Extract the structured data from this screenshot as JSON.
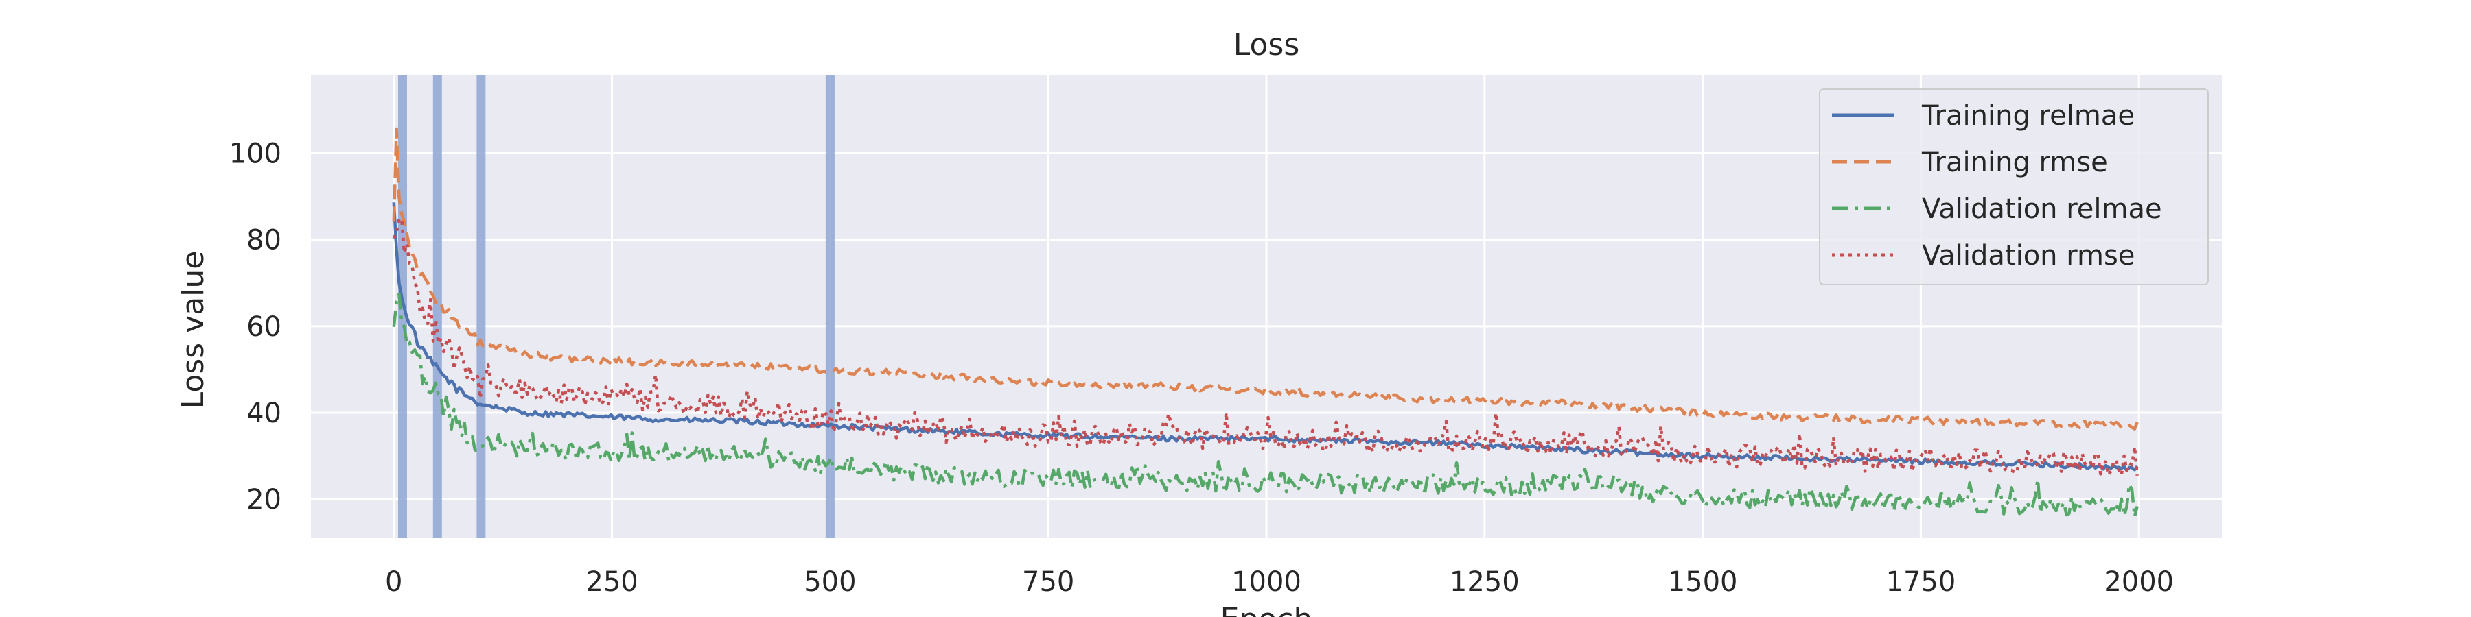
{
  "chart_data": {
    "type": "line",
    "title": "Loss",
    "xlabel": "Epoch",
    "ylabel": "Loss value",
    "xlim": [
      -95,
      2095
    ],
    "ylim": [
      11,
      118
    ],
    "x_ticks": [
      0,
      250,
      500,
      750,
      1000,
      1250,
      1500,
      1750,
      2000
    ],
    "y_ticks": [
      20,
      40,
      60,
      80,
      100
    ],
    "grid": true,
    "legend_position": "upper-right",
    "vertical_markers": [
      10,
      50,
      100,
      500
    ],
    "colors": {
      "background": "#eaeaf2",
      "grid": "#ffffff",
      "marker": "#8fa6d3"
    },
    "series": [
      {
        "name": "Training relmae",
        "color": "#4c72b0",
        "linestyle": "solid",
        "x": [
          0,
          5,
          10,
          20,
          30,
          50,
          75,
          100,
          150,
          200,
          250,
          300,
          400,
          500,
          600,
          700,
          800,
          900,
          1000,
          1100,
          1200,
          1300,
          1400,
          1500,
          1600,
          1700,
          1800,
          1900,
          2000
        ],
        "y": [
          88,
          72,
          65,
          60,
          55,
          50,
          45,
          42,
          40,
          39.5,
          39,
          38.5,
          38,
          37,
          36,
          35,
          34.5,
          34,
          34,
          33.5,
          33,
          32,
          31,
          30,
          29.5,
          29,
          28.5,
          28,
          27
        ]
      },
      {
        "name": "Training rmse",
        "color": "#dd8452",
        "linestyle": "dashed",
        "x": [
          0,
          2,
          5,
          10,
          20,
          30,
          50,
          75,
          100,
          150,
          200,
          250,
          300,
          400,
          500,
          600,
          700,
          800,
          900,
          1000,
          1100,
          1200,
          1300,
          1400,
          1500,
          1600,
          1700,
          1800,
          1900,
          2000
        ],
        "y": [
          85,
          113,
          92,
          85,
          78,
          72,
          66,
          60,
          56,
          53.5,
          52.5,
          52,
          51.5,
          51,
          50,
          49,
          47.5,
          46.5,
          46,
          45,
          44,
          43,
          42.5,
          41.5,
          40,
          39,
          38.5,
          38,
          37.5,
          37
        ]
      },
      {
        "name": "Validation relmae",
        "color": "#55a868",
        "linestyle": "dashdot",
        "x": [
          0,
          5,
          10,
          20,
          30,
          50,
          75,
          100,
          150,
          200,
          250,
          300,
          400,
          500,
          600,
          700,
          800,
          900,
          1000,
          1100,
          1200,
          1300,
          1400,
          1450,
          1500,
          1600,
          1700,
          1800,
          1900,
          2000
        ],
        "y": [
          60,
          68,
          62,
          56,
          50,
          44,
          37,
          33,
          32,
          31,
          31,
          31,
          30,
          28,
          26,
          25,
          24.5,
          24,
          24,
          23.5,
          23.5,
          23,
          23.5,
          21,
          20.5,
          20,
          19.5,
          19,
          18.5,
          18
        ]
      },
      {
        "name": "Validation rmse",
        "color": "#c44e52",
        "linestyle": "dotted",
        "x": [
          0,
          5,
          10,
          20,
          30,
          50,
          75,
          100,
          150,
          200,
          250,
          300,
          400,
          500,
          600,
          700,
          800,
          900,
          1000,
          1100,
          1200,
          1300,
          1400,
          1500,
          1600,
          1700,
          1800,
          1900,
          2000
        ],
        "y": [
          78,
          84,
          80,
          72,
          65,
          58,
          52,
          47,
          45,
          44,
          43.5,
          43,
          41,
          38,
          36,
          35,
          34.5,
          34.5,
          34,
          33.5,
          33.5,
          33,
          32.5,
          30,
          29.5,
          29,
          29,
          28.5,
          28
        ]
      }
    ]
  }
}
